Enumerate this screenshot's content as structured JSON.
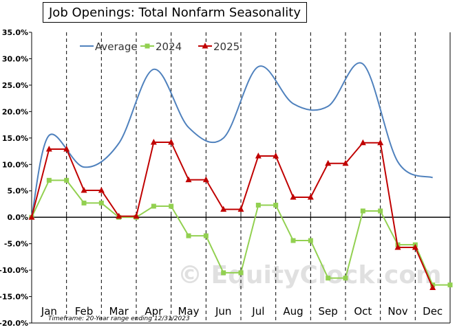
{
  "chart_data": {
    "type": "line",
    "title": "Job Openings: Total Nonfarm Seasonality",
    "categories": [
      "Jan",
      "Feb",
      "Mar",
      "Apr",
      "May",
      "Jun",
      "Jul",
      "Aug",
      "Sep",
      "Oct",
      "Nov",
      "Dec"
    ],
    "ylim": [
      -20,
      35
    ],
    "yticks": [
      {
        "value": 35,
        "label": "35.0%"
      },
      {
        "value": 30,
        "label": "30.0%"
      },
      {
        "value": 25,
        "label": "25.0%"
      },
      {
        "value": 20,
        "label": "20.0%"
      },
      {
        "value": 15,
        "label": "15.0%"
      },
      {
        "value": 10,
        "label": "10.0%"
      },
      {
        "value": 5,
        "label": "5.0%"
      },
      {
        "value": 0,
        "label": "0.0%"
      },
      {
        "value": -5,
        "label": "-5.0%"
      },
      {
        "value": -10,
        "label": "-10.0%"
      },
      {
        "value": -15,
        "label": "-15.0%"
      },
      {
        "value": -20,
        "label": "-20.0%"
      }
    ],
    "grid": {
      "vertical": true,
      "horizontal": false
    },
    "legend_position": "top-left",
    "series": [
      {
        "name": "Average",
        "color": "#4f81bd",
        "marker": "none",
        "smooth": true,
        "points": [
          {
            "x": 0,
            "y": 0
          },
          {
            "x": 0.5,
            "y": 15.5
          },
          {
            "x": 1.5,
            "y": 9.5
          },
          {
            "x": 2.5,
            "y": 14
          },
          {
            "x": 3.5,
            "y": 28
          },
          {
            "x": 4.5,
            "y": 17
          },
          {
            "x": 5.5,
            "y": 15
          },
          {
            "x": 6.5,
            "y": 28.5
          },
          {
            "x": 7.5,
            "y": 21.5
          },
          {
            "x": 8.5,
            "y": 21
          },
          {
            "x": 9.5,
            "y": 29
          },
          {
            "x": 10.5,
            "y": 10.5
          },
          {
            "x": 11.5,
            "y": 7.5
          }
        ]
      },
      {
        "name": "2024",
        "color": "#92d050",
        "marker": "square",
        "smooth": false,
        "points": [
          {
            "x": 0,
            "y": 0
          },
          {
            "x": 0.5,
            "y": 7
          },
          {
            "x": 1,
            "y": 7
          },
          {
            "x": 1.5,
            "y": 2.7
          },
          {
            "x": 2,
            "y": 2.7
          },
          {
            "x": 2.5,
            "y": 0
          },
          {
            "x": 3,
            "y": 0
          },
          {
            "x": 3.5,
            "y": 2.1
          },
          {
            "x": 4,
            "y": 2.1
          },
          {
            "x": 4.5,
            "y": -3.5
          },
          {
            "x": 5,
            "y": -3.5
          },
          {
            "x": 5.5,
            "y": -10.5
          },
          {
            "x": 6,
            "y": -10.5
          },
          {
            "x": 6.5,
            "y": 2.3
          },
          {
            "x": 7,
            "y": 2.3
          },
          {
            "x": 7.5,
            "y": -4.4
          },
          {
            "x": 8,
            "y": -4.4
          },
          {
            "x": 8.5,
            "y": -11.5
          },
          {
            "x": 9,
            "y": -11.5
          },
          {
            "x": 9.5,
            "y": 1.2
          },
          {
            "x": 10,
            "y": 1.2
          },
          {
            "x": 10.5,
            "y": -5.2
          },
          {
            "x": 11,
            "y": -5.2
          },
          {
            "x": 11.5,
            "y": -12.8
          },
          {
            "x": 12,
            "y": -12.8
          }
        ]
      },
      {
        "name": "2025",
        "color": "#c00000",
        "marker": "triangle",
        "smooth": false,
        "points": [
          {
            "x": 0,
            "y": 0
          },
          {
            "x": 0.5,
            "y": 12.9
          },
          {
            "x": 1,
            "y": 12.9
          },
          {
            "x": 1.5,
            "y": 5.1
          },
          {
            "x": 2,
            "y": 5.1
          },
          {
            "x": 2.5,
            "y": 0.2
          },
          {
            "x": 3,
            "y": 0.2
          },
          {
            "x": 3.5,
            "y": 14.2
          },
          {
            "x": 4,
            "y": 14.2
          },
          {
            "x": 4.5,
            "y": 7.1
          },
          {
            "x": 5,
            "y": 7.1
          },
          {
            "x": 5.5,
            "y": 1.5
          },
          {
            "x": 6,
            "y": 1.5
          },
          {
            "x": 6.5,
            "y": 11.6
          },
          {
            "x": 7,
            "y": 11.6
          },
          {
            "x": 7.5,
            "y": 3.8
          },
          {
            "x": 8,
            "y": 3.8
          },
          {
            "x": 8.5,
            "y": 10.2
          },
          {
            "x": 9,
            "y": 10.2
          },
          {
            "x": 9.5,
            "y": 14.1
          },
          {
            "x": 10,
            "y": 14.1
          },
          {
            "x": 10.5,
            "y": -5.7
          },
          {
            "x": 11,
            "y": -5.7
          },
          {
            "x": 11.5,
            "y": -13.3
          }
        ]
      }
    ],
    "footnote": "Timeframe: 20-Year range ending 12/31/2023",
    "watermark": "© EquityClock.com"
  }
}
